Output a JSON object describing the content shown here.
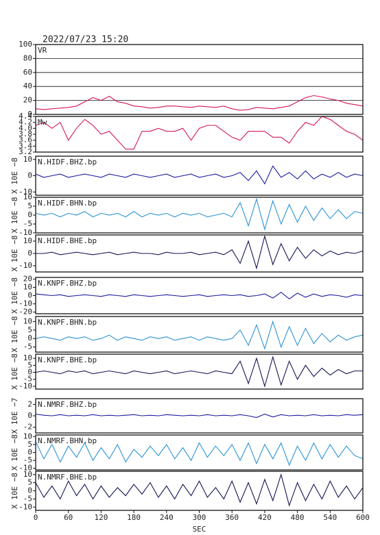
{
  "chart_data": [
    {
      "type": "line",
      "title": "2022/07/23 15:20",
      "label": "VR",
      "color": "#d41550",
      "grid": true,
      "x": [
        0,
        15,
        30,
        45,
        60,
        75,
        90,
        105,
        120,
        135,
        150,
        165,
        180,
        195,
        210,
        225,
        240,
        255,
        270,
        285,
        300,
        315,
        330,
        345,
        360,
        375,
        390,
        405,
        420,
        435,
        450,
        465,
        480,
        495,
        510,
        525,
        540,
        555,
        570,
        585,
        600
      ],
      "values": [
        8,
        7,
        8,
        9,
        10,
        12,
        18,
        24,
        20,
        26,
        18,
        16,
        12,
        11,
        9,
        10,
        12,
        12,
        11,
        10,
        12,
        11,
        10,
        12,
        8,
        6,
        7,
        10,
        9,
        8,
        10,
        12,
        18,
        24,
        27,
        25,
        22,
        20,
        16,
        14,
        12
      ],
      "ylim": [
        0,
        100
      ],
      "yticks": [
        0,
        20,
        40,
        60,
        80,
        100
      ]
    },
    {
      "type": "line",
      "label": "Mw",
      "color": "#d41550",
      "x": [
        0,
        15,
        30,
        45,
        60,
        75,
        90,
        105,
        120,
        135,
        150,
        165,
        180,
        195,
        210,
        225,
        240,
        255,
        270,
        285,
        300,
        315,
        330,
        345,
        360,
        375,
        390,
        405,
        420,
        435,
        450,
        465,
        480,
        495,
        510,
        525,
        540,
        555,
        570,
        585,
        600
      ],
      "values": [
        4.1,
        4.2,
        4.0,
        4.2,
        3.6,
        4.0,
        4.3,
        4.1,
        3.8,
        3.9,
        3.6,
        3.3,
        3.3,
        3.9,
        3.9,
        4.0,
        3.9,
        3.9,
        4.0,
        3.6,
        4.0,
        4.1,
        4.1,
        3.9,
        3.7,
        3.6,
        3.9,
        3.9,
        3.9,
        3.7,
        3.7,
        3.5,
        3.9,
        4.2,
        4.1,
        4.4,
        4.3,
        4.1,
        3.9,
        3.8,
        3.6
      ],
      "ylim": [
        3.2,
        4.4
      ],
      "yticks": [
        3.2,
        3.4,
        3.6,
        3.8,
        {
          "value": 4,
          "label": "4.0"
        },
        4.2,
        4.4
      ]
    },
    {
      "type": "line",
      "label": "N.HIDF.BHZ.bp",
      "ylabel": "X 10E −8",
      "color": "#1a1aa0",
      "x": [
        0,
        15,
        30,
        45,
        60,
        75,
        90,
        105,
        120,
        135,
        150,
        165,
        180,
        195,
        210,
        225,
        240,
        255,
        270,
        285,
        300,
        315,
        330,
        345,
        360,
        375,
        390,
        405,
        420,
        435,
        450,
        465,
        480,
        495,
        510,
        525,
        540,
        555,
        570,
        585,
        600
      ],
      "values": [
        1,
        -1,
        0,
        1,
        -1,
        0,
        1,
        0,
        -1,
        1,
        0,
        -1,
        1,
        0,
        -1,
        0,
        1,
        -1,
        0,
        1,
        -1,
        0,
        1,
        -1,
        0,
        2,
        -3,
        3,
        -5,
        6,
        -1,
        2,
        -2,
        3,
        -2,
        1,
        -1,
        2,
        -1,
        1,
        0
      ],
      "ylim": [
        -12,
        12
      ],
      "yticks": [
        -10,
        0,
        10
      ]
    },
    {
      "type": "line",
      "label": "N.HIDF.BHN.bp",
      "ylabel": "X 10E −8",
      "color": "#2a92d4",
      "x": [
        0,
        15,
        30,
        45,
        60,
        75,
        90,
        105,
        120,
        135,
        150,
        165,
        180,
        195,
        210,
        225,
        240,
        255,
        270,
        285,
        300,
        315,
        330,
        345,
        360,
        375,
        390,
        405,
        420,
        435,
        450,
        465,
        480,
        495,
        510,
        525,
        540,
        555,
        570,
        585,
        600
      ],
      "values": [
        1,
        0,
        1,
        -1,
        1,
        0,
        2,
        -1,
        1,
        0,
        1,
        -1,
        2,
        -1,
        1,
        0,
        1,
        -1,
        1,
        0,
        1,
        -1,
        0,
        1,
        -1,
        7,
        -6,
        9,
        -8,
        8,
        -5,
        6,
        -4,
        5,
        -3,
        4,
        -2,
        3,
        -2,
        2,
        1
      ],
      "ylim": [
        -10,
        10
      ],
      "yticks": [
        -10,
        -5,
        0,
        5,
        10
      ]
    },
    {
      "type": "line",
      "label": "N.HIDF.BHE.bp",
      "ylabel": "X 10E −8",
      "color": "#141452",
      "x": [
        0,
        15,
        30,
        45,
        60,
        75,
        90,
        105,
        120,
        135,
        150,
        165,
        180,
        195,
        210,
        225,
        240,
        255,
        270,
        285,
        300,
        315,
        330,
        345,
        360,
        375,
        390,
        405,
        420,
        435,
        450,
        465,
        480,
        495,
        510,
        525,
        540,
        555,
        570,
        585,
        600
      ],
      "values": [
        0,
        0,
        1,
        -1,
        0,
        1,
        0,
        -1,
        0,
        1,
        -1,
        0,
        1,
        0,
        0,
        -1,
        1,
        0,
        0,
        1,
        -1,
        0,
        1,
        -1,
        3,
        -8,
        10,
        -12,
        14,
        -9,
        8,
        -6,
        5,
        -4,
        3,
        -2,
        2,
        -1,
        1,
        0,
        2
      ],
      "ylim": [
        -15,
        15
      ],
      "yticks": [
        -10,
        0,
        10
      ]
    },
    {
      "type": "line",
      "label": "N.KNPF.BHZ.bp",
      "ylabel": "X 10E −8",
      "color": "#1a1aa0",
      "x": [
        0,
        15,
        30,
        45,
        60,
        75,
        90,
        105,
        120,
        135,
        150,
        165,
        180,
        195,
        210,
        225,
        240,
        255,
        270,
        285,
        300,
        315,
        330,
        345,
        360,
        375,
        390,
        405,
        420,
        435,
        450,
        465,
        480,
        495,
        510,
        525,
        540,
        555,
        570,
        585,
        600
      ],
      "values": [
        2,
        1,
        0,
        1,
        -1,
        0,
        1,
        0,
        -1,
        1,
        0,
        -1,
        1,
        0,
        -1,
        0,
        1,
        0,
        -1,
        0,
        1,
        -1,
        0,
        1,
        0,
        1,
        -1,
        0,
        2,
        -3,
        4,
        -4,
        3,
        -2,
        2,
        -1,
        1,
        0,
        -2,
        1,
        0
      ],
      "ylim": [
        -22,
        22
      ],
      "yticks": [
        -20,
        -10,
        0,
        10,
        20
      ]
    },
    {
      "type": "line",
      "label": "N.KNPF.BHN.bp",
      "ylabel": "X 10E −8",
      "color": "#2a92d4",
      "x": [
        0,
        15,
        30,
        45,
        60,
        75,
        90,
        105,
        120,
        135,
        150,
        165,
        180,
        195,
        210,
        225,
        240,
        255,
        270,
        285,
        300,
        315,
        330,
        345,
        360,
        375,
        390,
        405,
        420,
        435,
        450,
        465,
        480,
        495,
        510,
        525,
        540,
        555,
        570,
        585,
        600
      ],
      "values": [
        0,
        1,
        0,
        -1,
        1,
        0,
        1,
        -1,
        0,
        2,
        -1,
        1,
        0,
        -1,
        1,
        0,
        1,
        -1,
        0,
        1,
        -1,
        1,
        0,
        -1,
        0,
        5,
        -4,
        8,
        -6,
        10,
        -5,
        7,
        -4,
        6,
        -3,
        3,
        -2,
        2,
        -1,
        1,
        2
      ],
      "ylim": [
        -8,
        13
      ],
      "yticks": [
        -5,
        0,
        5,
        10
      ]
    },
    {
      "type": "line",
      "label": "N.KNPF.BHE.bp",
      "ylabel": "X 10E −8",
      "color": "#141452",
      "x": [
        0,
        15,
        30,
        45,
        60,
        75,
        90,
        105,
        120,
        135,
        150,
        165,
        180,
        195,
        210,
        225,
        240,
        255,
        270,
        285,
        300,
        315,
        330,
        345,
        360,
        375,
        390,
        405,
        420,
        435,
        450,
        465,
        480,
        495,
        510,
        525,
        540,
        555,
        570,
        585,
        600
      ],
      "values": [
        0,
        1,
        0,
        -1,
        1,
        0,
        1,
        -1,
        0,
        1,
        0,
        -1,
        1,
        0,
        -1,
        0,
        1,
        -1,
        0,
        1,
        0,
        -1,
        1,
        0,
        -1,
        8,
        -8,
        10,
        -10,
        11,
        -9,
        8,
        -5,
        5,
        -3,
        3,
        -2,
        2,
        -1,
        1,
        1
      ],
      "ylim": [
        -12,
        13
      ],
      "yticks": [
        -10,
        -5,
        0,
        5,
        10
      ]
    },
    {
      "type": "line",
      "label": "N.NMRF.BHZ.bp",
      "ylabel": "X 10E −7",
      "color": "#1a1aa0",
      "x": [
        0,
        15,
        30,
        45,
        60,
        75,
        90,
        105,
        120,
        135,
        150,
        165,
        180,
        195,
        210,
        225,
        240,
        255,
        270,
        285,
        300,
        315,
        330,
        345,
        360,
        375,
        390,
        405,
        420,
        435,
        450,
        465,
        480,
        495,
        510,
        525,
        540,
        555,
        570,
        585,
        600
      ],
      "values": [
        0.3,
        0.1,
        0,
        0.2,
        0,
        0.1,
        0,
        0.2,
        0,
        0.1,
        0,
        0.1,
        0.2,
        0,
        0.1,
        0,
        0.2,
        0.1,
        0,
        0.1,
        0,
        0.2,
        0,
        0.1,
        0,
        0.2,
        0,
        -0.3,
        0.3,
        -0.2,
        0.2,
        0,
        0.1,
        0,
        0.2,
        0,
        0.1,
        0,
        0.2,
        0.1,
        0.2
      ],
      "ylim": [
        -3,
        3
      ],
      "yticks": [
        -2,
        0,
        2
      ]
    },
    {
      "type": "line",
      "label": "N.NMRF.BHN.bp",
      "ylabel": "X 10E −8",
      "color": "#2a92d4",
      "x": [
        0,
        15,
        30,
        45,
        60,
        75,
        90,
        105,
        120,
        135,
        150,
        165,
        180,
        195,
        210,
        225,
        240,
        255,
        270,
        285,
        300,
        315,
        330,
        345,
        360,
        375,
        390,
        405,
        420,
        435,
        450,
        465,
        480,
        495,
        510,
        525,
        540,
        555,
        570,
        585,
        600
      ],
      "values": [
        7,
        -4,
        5,
        -6,
        4,
        -3,
        6,
        -5,
        3,
        -4,
        5,
        -6,
        2,
        -3,
        4,
        -2,
        5,
        -4,
        3,
        -5,
        6,
        -3,
        4,
        -2,
        5,
        -5,
        6,
        -7,
        5,
        -4,
        6,
        -8,
        4,
        -5,
        6,
        -4,
        5,
        -3,
        4,
        -2,
        -4
      ],
      "ylim": [
        -11,
        11
      ],
      "yticks": [
        -10,
        -5,
        0,
        5,
        10
      ]
    },
    {
      "type": "line",
      "label": "N.NMRF.BHE.bp",
      "ylabel": "X 10E −8",
      "color": "#141452",
      "xlabel": "SEC",
      "x": [
        0,
        15,
        30,
        45,
        60,
        75,
        90,
        105,
        120,
        135,
        150,
        165,
        180,
        195,
        210,
        225,
        240,
        255,
        270,
        285,
        300,
        315,
        330,
        345,
        360,
        375,
        390,
        405,
        420,
        435,
        450,
        465,
        480,
        495,
        510,
        525,
        540,
        555,
        570,
        585,
        600
      ],
      "values": [
        5,
        -4,
        3,
        -5,
        6,
        -3,
        4,
        -5,
        3,
        -4,
        2,
        -3,
        4,
        -2,
        5,
        -4,
        3,
        -5,
        4,
        -3,
        6,
        -4,
        2,
        -5,
        6,
        -7,
        5,
        -8,
        7,
        -6,
        10,
        -9,
        5,
        -6,
        4,
        -5,
        6,
        -4,
        3,
        -5,
        2
      ],
      "ylim": [
        -12,
        12
      ],
      "yticks": [
        -10,
        -5,
        0,
        5,
        10
      ],
      "xlim": [
        0,
        600
      ],
      "xticks": [
        0,
        60,
        120,
        180,
        240,
        300,
        360,
        420,
        480,
        540,
        600
      ]
    }
  ]
}
